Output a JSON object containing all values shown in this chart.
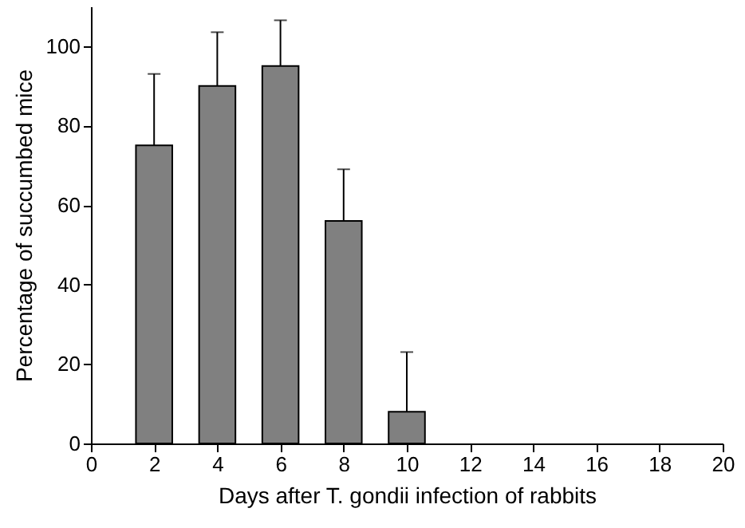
{
  "chart_data": {
    "type": "bar",
    "xlabel": "Days after T. gondii infection of rabbits",
    "ylabel": "Percentage of succumbed mice",
    "x": [
      2,
      4,
      6,
      8,
      10
    ],
    "values": [
      75,
      90,
      95,
      56,
      8
    ],
    "color": "#808080",
    "errors": [
      [
        75,
        93
      ],
      [
        90,
        103.5
      ],
      [
        95,
        106.5
      ],
      [
        56,
        69
      ],
      [
        8,
        23
      ]
    ],
    "xlim": [
      0,
      20
    ],
    "xticks": [
      0,
      2,
      4,
      6,
      8,
      10,
      12,
      14,
      16,
      18,
      20
    ],
    "ylim": [
      0,
      110
    ],
    "yticks": [
      0,
      20,
      40,
      60,
      80,
      100
    ],
    "grid": false
  }
}
